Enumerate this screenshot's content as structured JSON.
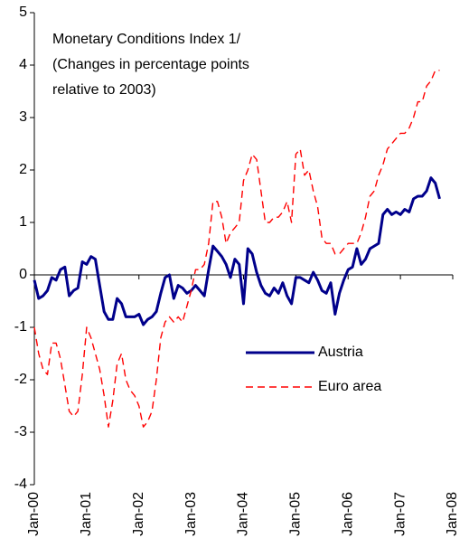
{
  "chart_data": {
    "type": "line",
    "title": [
      "Monetary Conditions Index 1/",
      "(Changes in percentage points",
      "relative to 2003)"
    ],
    "categories": [
      "Jan-00",
      null,
      null,
      null,
      null,
      null,
      null,
      null,
      null,
      null,
      null,
      null,
      "Jan-01",
      null,
      null,
      null,
      null,
      null,
      null,
      null,
      null,
      null,
      null,
      null,
      "Jan-02",
      null,
      null,
      null,
      null,
      null,
      null,
      null,
      null,
      null,
      null,
      null,
      "Jan-03",
      null,
      null,
      null,
      null,
      null,
      null,
      null,
      null,
      null,
      null,
      null,
      "Jan-04",
      null,
      null,
      null,
      null,
      null,
      null,
      null,
      null,
      null,
      null,
      null,
      "Jan-05",
      null,
      null,
      null,
      null,
      null,
      null,
      null,
      null,
      null,
      null,
      null,
      "Jan-06",
      null,
      null,
      null,
      null,
      null,
      null,
      null,
      null,
      null,
      null,
      null,
      "Jan-07",
      null,
      null,
      null,
      null,
      null,
      null,
      null,
      null,
      null,
      null,
      null,
      "Jan-08"
    ],
    "series": [
      {
        "name": "Austria",
        "color": "#00008b",
        "style": "solid",
        "values": [
          -0.1,
          -0.45,
          -0.4,
          -0.3,
          -0.05,
          -0.1,
          0.1,
          0.15,
          -0.4,
          -0.3,
          -0.25,
          0.25,
          0.2,
          0.35,
          0.3,
          -0.2,
          -0.7,
          -0.85,
          -0.85,
          -0.45,
          -0.55,
          -0.8,
          -0.8,
          -0.8,
          -0.75,
          -0.95,
          -0.85,
          -0.8,
          -0.7,
          -0.35,
          -0.05,
          0,
          -0.45,
          -0.2,
          -0.25,
          -0.35,
          -0.3,
          -0.2,
          -0.3,
          -0.4,
          0.1,
          0.55,
          0.45,
          0.35,
          0.2,
          -0.05,
          0.3,
          0.2,
          -0.55,
          0.5,
          0.4,
          0.05,
          -0.2,
          -0.35,
          -0.4,
          -0.25,
          -0.35,
          -0.15,
          -0.4,
          -0.55,
          -0.05,
          -0.05,
          -0.1,
          -0.15,
          0.05,
          -0.1,
          -0.3,
          -0.35,
          -0.15,
          -0.75,
          -0.35,
          -0.1,
          0.1,
          0.15,
          0.5,
          0.2,
          0.3,
          0.5,
          0.55,
          0.6,
          1.15,
          1.25,
          1.15,
          1.2,
          1.15,
          1.25,
          1.2,
          1.45,
          1.5,
          1.5,
          1.6,
          1.85,
          1.75,
          1.45,
          null,
          null,
          null
        ]
      },
      {
        "name": "Euro area",
        "color": "#ff0000",
        "style": "dashed",
        "values": [
          -1.0,
          -1.5,
          -1.8,
          -1.9,
          -1.3,
          -1.3,
          -1.6,
          -2.1,
          -2.6,
          -2.7,
          -2.6,
          -1.9,
          -1.0,
          -1.2,
          -1.5,
          -1.8,
          -2.3,
          -2.9,
          -2.4,
          -1.7,
          -1.5,
          -2.0,
          -2.2,
          -2.3,
          -2.5,
          -2.9,
          -2.8,
          -2.6,
          -2.0,
          -1.2,
          -0.9,
          -0.8,
          -0.9,
          -0.8,
          -0.9,
          -0.6,
          -0.3,
          0.1,
          0.1,
          0.2,
          0.6,
          1.4,
          1.4,
          1.1,
          0.6,
          0.8,
          0.9,
          1.0,
          1.8,
          2.0,
          2.3,
          2.2,
          1.6,
          1.0,
          1.0,
          1.1,
          1.1,
          1.2,
          1.4,
          1.0,
          2.3,
          2.4,
          1.9,
          2.0,
          1.6,
          1.3,
          0.7,
          0.6,
          0.6,
          0.4,
          0.4,
          0.5,
          0.6,
          0.6,
          0.6,
          0.8,
          1.1,
          1.5,
          1.6,
          1.9,
          2.1,
          2.4,
          2.5,
          2.6,
          2.7,
          2.7,
          2.8,
          3.0,
          3.3,
          3.3,
          3.6,
          3.7,
          3.9,
          3.9,
          null,
          null,
          null
        ]
      }
    ],
    "ylim": [
      -4,
      5
    ],
    "yticks": [
      -4,
      -3,
      -2,
      -1,
      0,
      1,
      2,
      3,
      4,
      5
    ],
    "legend_loc": "center right",
    "grid": false
  }
}
